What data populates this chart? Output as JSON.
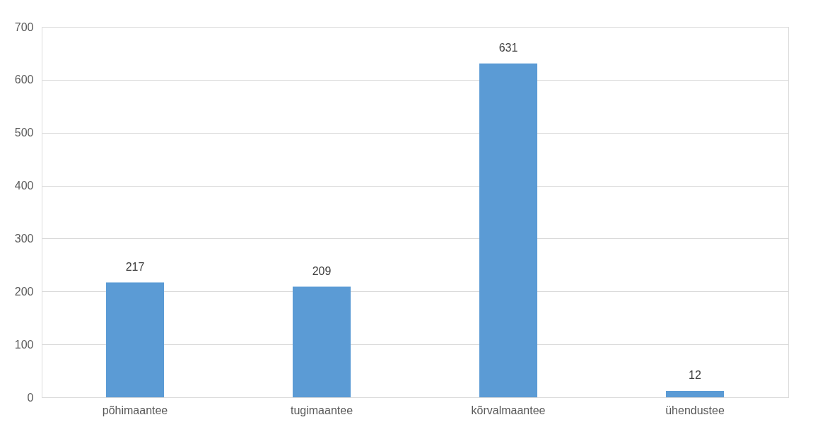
{
  "chart_data": {
    "type": "bar",
    "categories": [
      "põhimaantee",
      "tugimaantee",
      "kõrvalmaantee",
      "ühendustee"
    ],
    "values": [
      217,
      209,
      631,
      12
    ],
    "color": "#5b9bd5",
    "ylim": [
      0,
      700
    ],
    "yticks": [
      0,
      100,
      200,
      300,
      400,
      500,
      600,
      700
    ],
    "grid": "y",
    "data_labels": true
  }
}
